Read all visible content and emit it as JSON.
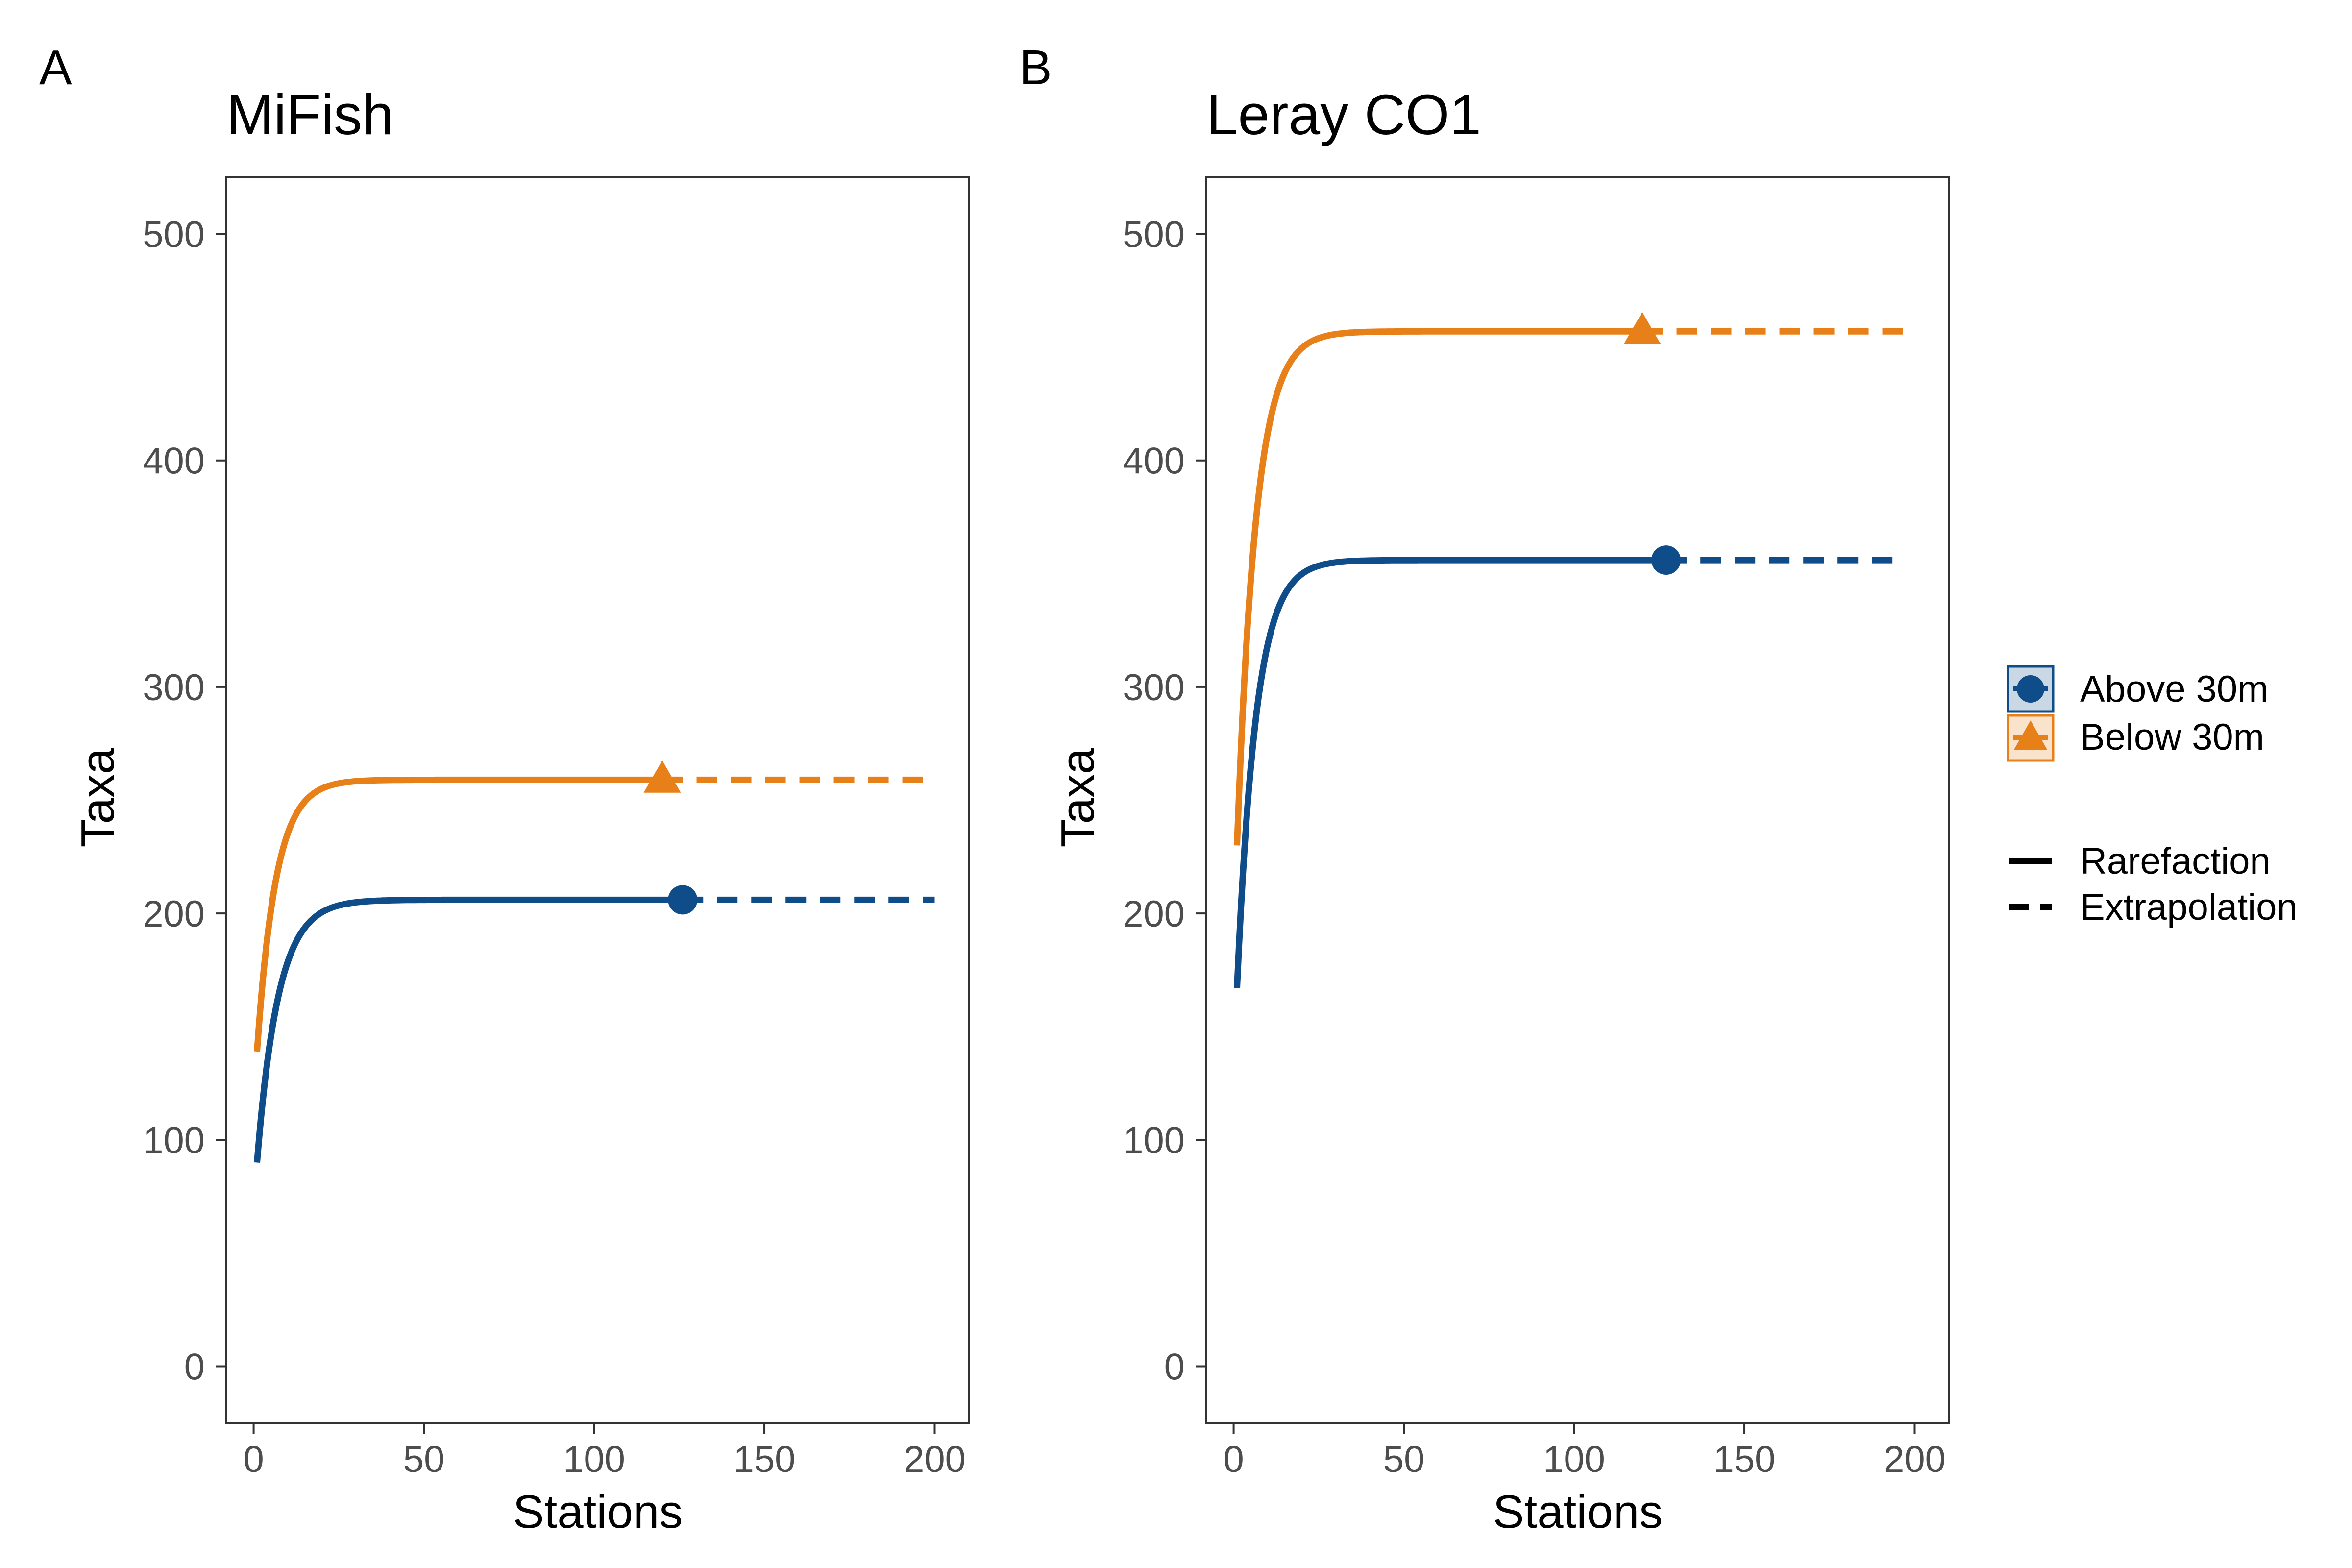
{
  "chart_data": [
    {
      "type": "line",
      "panel_tag": "A",
      "title": "MiFish",
      "xlabel": "Stations",
      "ylabel": "Taxa",
      "xlim": [
        -8,
        210
      ],
      "ylim": [
        -25,
        525
      ],
      "xticks": [
        0,
        50,
        100,
        150,
        200
      ],
      "yticks": [
        0,
        100,
        200,
        300,
        400,
        500
      ],
      "grid": false,
      "series": [
        {
          "name": "Above 30m",
          "color": "#0F4C8A",
          "marker": "circle",
          "observed": {
            "x": 126,
            "y": 206
          },
          "rarefaction": {
            "x_start": 1,
            "x_end": 126,
            "y_start": 90,
            "asymptote": 206,
            "rate": 0.16
          },
          "extrapolation": {
            "x_start": 126,
            "x_end": 200,
            "y": 206
          }
        },
        {
          "name": "Below 30m",
          "color": "#E8801A",
          "marker": "triangle",
          "observed": {
            "x": 120,
            "y": 259
          },
          "rarefaction": {
            "x_start": 1,
            "x_end": 120,
            "y_start": 139,
            "asymptote": 259,
            "rate": 0.18
          },
          "extrapolation": {
            "x_start": 120,
            "x_end": 200,
            "y": 259
          }
        }
      ]
    },
    {
      "type": "line",
      "panel_tag": "B",
      "title": "Leray CO1",
      "xlabel": "Stations",
      "ylabel": "Taxa",
      "xlim": [
        -8,
        210
      ],
      "ylim": [
        -25,
        525
      ],
      "xticks": [
        0,
        50,
        100,
        150,
        200
      ],
      "yticks": [
        0,
        100,
        200,
        300,
        400,
        500
      ],
      "grid": false,
      "series": [
        {
          "name": "Above 30m",
          "color": "#0F4C8A",
          "marker": "circle",
          "observed": {
            "x": 127,
            "y": 356
          },
          "rarefaction": {
            "x_start": 1,
            "x_end": 127,
            "y_start": 167,
            "asymptote": 356,
            "rate": 0.18
          },
          "extrapolation": {
            "x_start": 127,
            "x_end": 196,
            "y": 356
          }
        },
        {
          "name": "Below 30m",
          "color": "#E8801A",
          "marker": "triangle",
          "observed": {
            "x": 120,
            "y": 457
          },
          "rarefaction": {
            "x_start": 1,
            "x_end": 120,
            "y_start": 230,
            "asymptote": 457,
            "rate": 0.18
          },
          "extrapolation": {
            "x_start": 120,
            "x_end": 198,
            "y": 457
          }
        }
      ]
    }
  ],
  "legend": {
    "placement": "right",
    "groups": [
      {
        "label": "Above 30m",
        "color": "#0F4C8A",
        "marker": "circle"
      },
      {
        "label": "Below 30m",
        "color": "#E8801A",
        "marker": "triangle"
      }
    ],
    "line_types": [
      {
        "label": "Rarefaction",
        "style": "solid"
      },
      {
        "label": "Extrapolation",
        "style": "dashed"
      }
    ]
  }
}
